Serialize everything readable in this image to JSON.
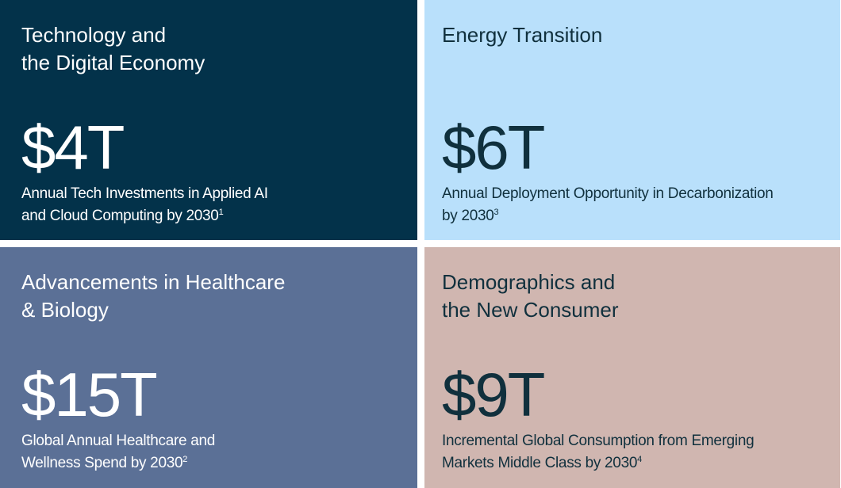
{
  "tiles": [
    {
      "title_lines": [
        "Technology and",
        "the Digital Economy"
      ],
      "value": "$4T",
      "description_lines": [
        "Annual Tech Investments in Applied AI",
        "and Cloud Computing by 2030"
      ],
      "footnote": "1"
    },
    {
      "title_lines": [
        "Energy Transition"
      ],
      "value": "$6T",
      "description_lines": [
        "Annual Deployment Opportunity in Decarbonization",
        "by 2030"
      ],
      "footnote": "3"
    },
    {
      "title_lines": [
        "Advancements in Healthcare",
        "& Biology"
      ],
      "value": "$15T",
      "description_lines": [
        "Global Annual Healthcare and",
        "Wellness Spend by 2030"
      ],
      "footnote": "2"
    },
    {
      "title_lines": [
        "Demographics and",
        "the New Consumer"
      ],
      "value": "$9T",
      "description_lines": [
        "Incremental Global Consumption from Emerging",
        "Markets Middle Class by 2030"
      ],
      "footnote": "4"
    }
  ]
}
